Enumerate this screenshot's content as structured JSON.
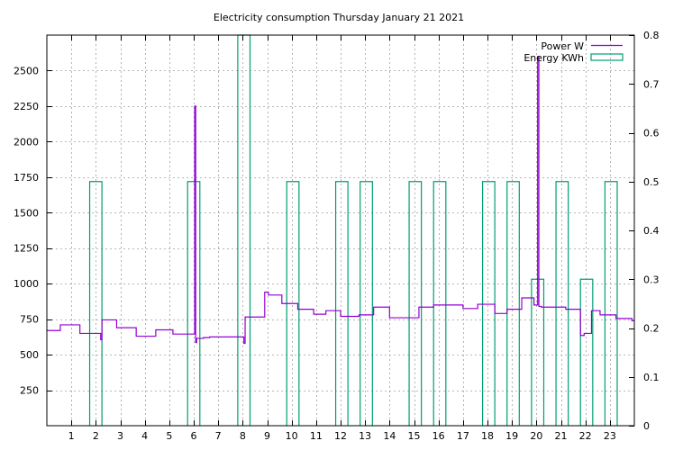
{
  "chart_data": {
    "type": "line",
    "title": "Electricity consumption Thursday January 21 2021",
    "grid": true,
    "legend_position": "top-right",
    "x": {
      "range": [
        0,
        24
      ],
      "ticks": [
        1,
        2,
        3,
        4,
        5,
        6,
        7,
        8,
        9,
        10,
        11,
        12,
        13,
        14,
        15,
        16,
        17,
        18,
        19,
        20,
        21,
        22,
        23
      ]
    },
    "y_left": {
      "range": [
        0,
        2750
      ],
      "ticks": [
        250,
        500,
        750,
        1000,
        1250,
        1500,
        1750,
        2000,
        2250,
        2500
      ]
    },
    "y_right": {
      "range": [
        0,
        0.8
      ],
      "ticks": [
        "0",
        "0.1",
        "0.2",
        "0.3",
        "0.4",
        "0.5",
        "0.6",
        "0.7",
        "0.8"
      ]
    },
    "series": [
      {
        "name": "Power W",
        "color": "#9400d3",
        "axis": "left",
        "style": "steps",
        "points": [
          [
            0,
            670
          ],
          [
            0.55,
            710
          ],
          [
            1.35,
            650
          ],
          [
            2.2,
            605
          ],
          [
            2.25,
            745
          ],
          [
            2.85,
            690
          ],
          [
            3.65,
            630
          ],
          [
            4.45,
            675
          ],
          [
            5.15,
            645
          ],
          [
            6.0,
            645
          ],
          [
            6.04,
            2250
          ],
          [
            6.08,
            585
          ],
          [
            6.12,
            615
          ],
          [
            6.4,
            620
          ],
          [
            6.65,
            625
          ],
          [
            8.05,
            580
          ],
          [
            8.1,
            765
          ],
          [
            8.9,
            940
          ],
          [
            9.05,
            920
          ],
          [
            9.6,
            860
          ],
          [
            10.25,
            820
          ],
          [
            10.9,
            785
          ],
          [
            11.4,
            810
          ],
          [
            12.0,
            770
          ],
          [
            12.75,
            780
          ],
          [
            13.35,
            835
          ],
          [
            14.0,
            760
          ],
          [
            15.2,
            835
          ],
          [
            15.8,
            850
          ],
          [
            17.0,
            825
          ],
          [
            17.6,
            855
          ],
          [
            18.3,
            790
          ],
          [
            18.8,
            820
          ],
          [
            19.4,
            900
          ],
          [
            19.9,
            850
          ],
          [
            20.05,
            2600
          ],
          [
            20.1,
            840
          ],
          [
            20.2,
            835
          ],
          [
            21.2,
            820
          ],
          [
            21.8,
            635
          ],
          [
            21.95,
            650
          ],
          [
            22.25,
            810
          ],
          [
            22.6,
            780
          ],
          [
            23.25,
            755
          ],
          [
            23.9,
            740
          ],
          [
            24,
            740
          ]
        ]
      },
      {
        "name": "Energy KWh",
        "color": "#009e73",
        "axis": "right",
        "style": "bars",
        "bars": [
          {
            "x0": 1.75,
            "x1": 2.25,
            "value": 0.5
          },
          {
            "x0": 5.75,
            "x1": 6.25,
            "value": 0.5
          },
          {
            "x0": 7.8,
            "x1": 8.3,
            "value": 0.8
          },
          {
            "x0": 9.8,
            "x1": 10.3,
            "value": 0.5
          },
          {
            "x0": 11.8,
            "x1": 12.3,
            "value": 0.5
          },
          {
            "x0": 12.8,
            "x1": 13.3,
            "value": 0.5
          },
          {
            "x0": 14.8,
            "x1": 15.3,
            "value": 0.5
          },
          {
            "x0": 15.8,
            "x1": 16.3,
            "value": 0.5
          },
          {
            "x0": 17.8,
            "x1": 18.3,
            "value": 0.5
          },
          {
            "x0": 18.8,
            "x1": 19.3,
            "value": 0.5
          },
          {
            "x0": 19.8,
            "x1": 20.3,
            "value": 0.3
          },
          {
            "x0": 20.8,
            "x1": 21.3,
            "value": 0.5
          },
          {
            "x0": 21.8,
            "x1": 22.3,
            "value": 0.3
          },
          {
            "x0": 22.8,
            "x1": 23.3,
            "value": 0.5
          }
        ]
      }
    ]
  }
}
